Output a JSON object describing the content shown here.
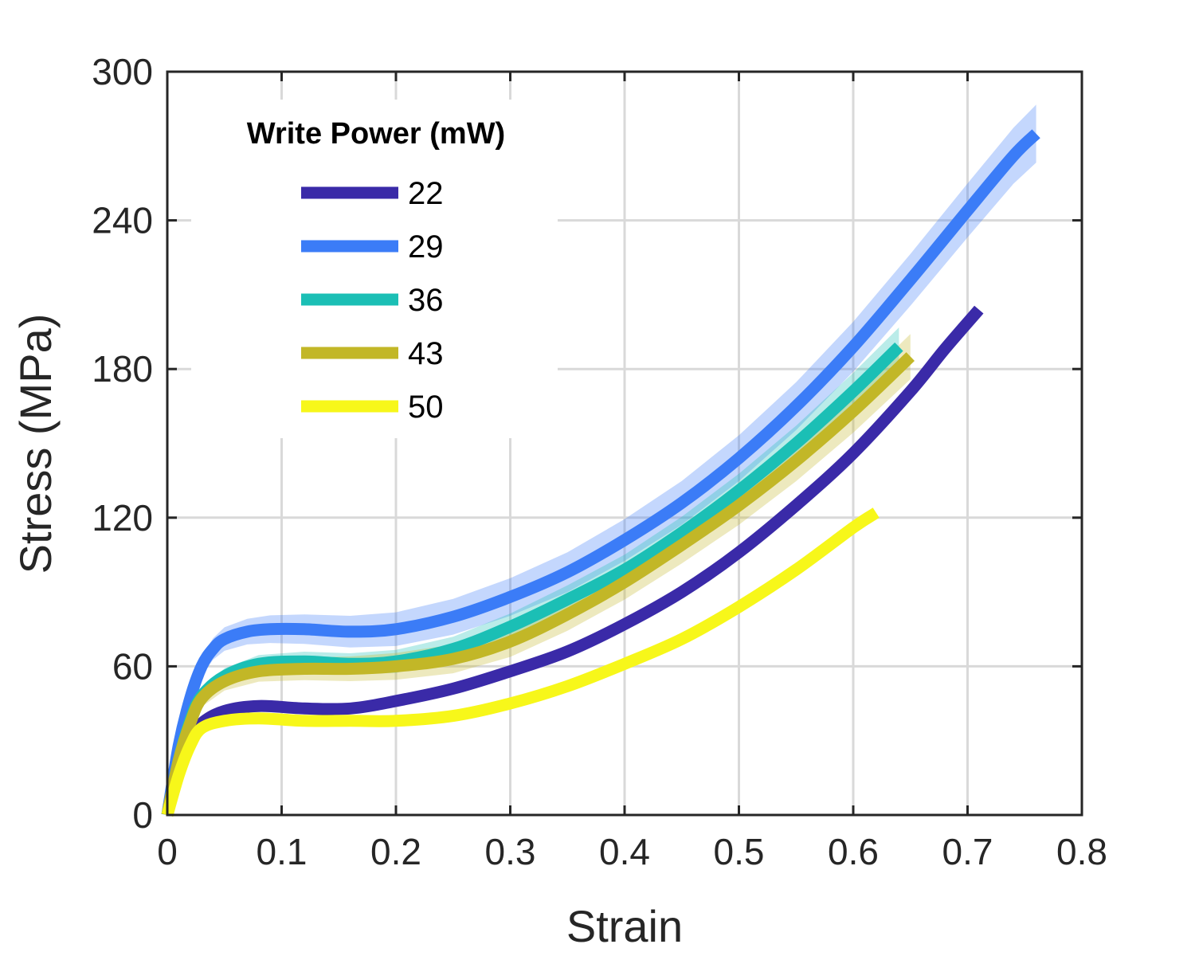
{
  "chart_data": {
    "type": "line",
    "xlabel": "Strain",
    "ylabel": "Stress (MPa)",
    "xlim": [
      0,
      0.8
    ],
    "ylim": [
      0,
      300
    ],
    "xticks": [
      "0",
      "0.1",
      "0.2",
      "0.3",
      "0.4",
      "0.5",
      "0.6",
      "0.7",
      "0.8"
    ],
    "yticks": [
      "0",
      "60",
      "120",
      "180",
      "240",
      "300"
    ],
    "grid": true,
    "legend": {
      "title": "Write Power (mW)",
      "placement": "top-left"
    },
    "series": [
      {
        "name": "22",
        "color": "#3a2aa8",
        "x": [
          0,
          0.01,
          0.02,
          0.03,
          0.05,
          0.08,
          0.12,
          0.16,
          0.2,
          0.25,
          0.3,
          0.35,
          0.4,
          0.45,
          0.5,
          0.55,
          0.6,
          0.65,
          0.68,
          0.71
        ],
        "y": [
          0,
          18,
          30,
          37,
          42,
          44,
          43,
          43,
          46,
          51,
          58,
          66,
          77,
          90,
          106,
          125,
          146,
          171,
          188,
          204
        ]
      },
      {
        "name": "29",
        "color": "#3b7cf7",
        "x": [
          0,
          0.01,
          0.02,
          0.03,
          0.04,
          0.05,
          0.07,
          0.09,
          0.12,
          0.16,
          0.2,
          0.25,
          0.3,
          0.35,
          0.4,
          0.45,
          0.5,
          0.55,
          0.6,
          0.65,
          0.7,
          0.74,
          0.76
        ],
        "y": [
          0,
          28,
          47,
          60,
          67,
          71,
          74,
          75,
          75,
          74,
          75,
          80,
          88,
          98,
          111,
          126,
          144,
          165,
          189,
          216,
          244,
          266,
          275
        ],
        "band": 9
      },
      {
        "name": "36",
        "color": "#1bbfb5",
        "x": [
          0,
          0.01,
          0.02,
          0.03,
          0.05,
          0.08,
          0.12,
          0.16,
          0.2,
          0.25,
          0.3,
          0.35,
          0.4,
          0.45,
          0.5,
          0.55,
          0.6,
          0.64
        ],
        "y": [
          0,
          22,
          38,
          48,
          56,
          61,
          62,
          61,
          62,
          67,
          76,
          87,
          99,
          114,
          131,
          150,
          171,
          189
        ],
        "band": 6
      },
      {
        "name": "43",
        "color": "#c2b727",
        "x": [
          0,
          0.01,
          0.02,
          0.03,
          0.05,
          0.08,
          0.12,
          0.16,
          0.2,
          0.25,
          0.3,
          0.35,
          0.4,
          0.45,
          0.5,
          0.55,
          0.6,
          0.65
        ],
        "y": [
          0,
          22,
          37,
          47,
          54,
          58,
          59,
          59,
          60,
          63,
          70,
          81,
          94,
          109,
          125,
          143,
          163,
          185
        ],
        "band": 7
      },
      {
        "name": "50",
        "color": "#f7f71a",
        "x": [
          0,
          0.01,
          0.02,
          0.03,
          0.05,
          0.08,
          0.12,
          0.16,
          0.2,
          0.25,
          0.3,
          0.35,
          0.4,
          0.45,
          0.5,
          0.55,
          0.6,
          0.62
        ],
        "y": [
          0,
          16,
          28,
          35,
          38,
          39,
          38,
          38,
          38,
          40,
          45,
          52,
          61,
          71,
          84,
          99,
          116,
          122
        ]
      }
    ]
  }
}
